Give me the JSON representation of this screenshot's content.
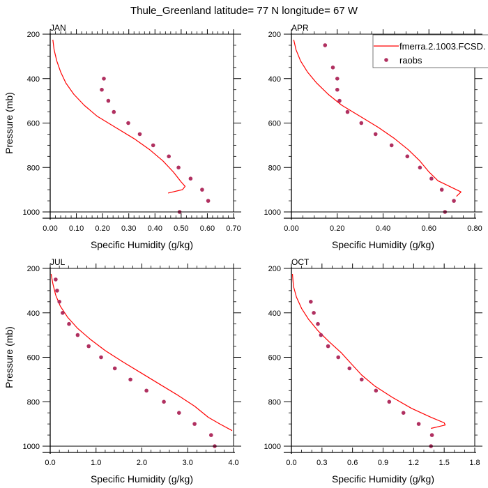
{
  "figure": {
    "title": "Thule_Greenland  latitude= 77 N longitude= 67 W",
    "legend": {
      "entries": [
        {
          "label": "fmerra.2.1003.FCSD.",
          "kind": "line",
          "color": "#ff0000"
        },
        {
          "label": "raobs",
          "kind": "marker",
          "color": "#b03060"
        }
      ]
    },
    "colors": {
      "model_line": "#ff0000",
      "obs_marker": "#b03060",
      "axis": "#000000"
    }
  },
  "chart_data": [
    {
      "type": "line",
      "panel": "JAN",
      "title": "JAN",
      "xlabel": "Specific Humidity (g/kg)",
      "ylabel": "Pressure (mb)",
      "xlim": [
        0,
        0.7
      ],
      "xticks": [
        0,
        0.1,
        0.2,
        0.3,
        0.4,
        0.5,
        0.6,
        0.7
      ],
      "xtick_labels": [
        "0.00",
        "0.10",
        "0.20",
        "0.30",
        "0.40",
        "0.50",
        "0.60",
        "0.70"
      ],
      "ylim": [
        200,
        1000
      ],
      "yinverted": true,
      "yticks": [
        200,
        400,
        600,
        800,
        1000
      ],
      "ytick_labels": [
        "200",
        "400",
        "600",
        "800",
        "1000"
      ],
      "grid": false,
      "series": [
        {
          "name": "fmerra.2.1003.FCSD.",
          "kind": "line",
          "x": [
            0.01,
            0.015,
            0.025,
            0.04,
            0.06,
            0.09,
            0.13,
            0.18,
            0.25,
            0.32,
            0.38,
            0.43,
            0.47,
            0.5,
            0.515,
            0.505,
            0.45
          ],
          "y": [
            225,
            270,
            320,
            370,
            420,
            470,
            520,
            570,
            620,
            670,
            720,
            770,
            820,
            865,
            885,
            900,
            915
          ]
        },
        {
          "name": "raobs",
          "kind": "scatter",
          "x": [
            0.205,
            0.197,
            0.222,
            0.243,
            0.298,
            0.342,
            0.393,
            0.453,
            0.49,
            0.536,
            0.58,
            0.603,
            0.494
          ],
          "y": [
            400,
            450,
            500,
            550,
            600,
            650,
            700,
            750,
            800,
            850,
            900,
            950,
            1000
          ]
        }
      ]
    },
    {
      "type": "line",
      "panel": "APR",
      "title": "APR",
      "xlabel": "Specific Humidity (g/kg)",
      "ylabel": "",
      "xlim": [
        0,
        0.8
      ],
      "xticks": [
        0,
        0.2,
        0.4,
        0.6,
        0.8
      ],
      "xtick_labels": [
        "0.00",
        "0.20",
        "0.40",
        "0.60",
        "0.80"
      ],
      "ylim": [
        200,
        1000
      ],
      "yinverted": true,
      "yticks": [
        200,
        400,
        600,
        800,
        1000
      ],
      "ytick_labels": [
        "200",
        "400",
        "600",
        "800",
        "1000"
      ],
      "grid": false,
      "legend_position": "top-right",
      "series": [
        {
          "name": "fmerra.2.1003.FCSD.",
          "kind": "line",
          "x": [
            0.01,
            0.02,
            0.04,
            0.07,
            0.11,
            0.16,
            0.22,
            0.3,
            0.38,
            0.45,
            0.51,
            0.56,
            0.6,
            0.64,
            0.7,
            0.74,
            0.72
          ],
          "y": [
            225,
            270,
            320,
            370,
            420,
            470,
            520,
            570,
            620,
            670,
            720,
            770,
            820,
            860,
            890,
            910,
            930
          ]
        },
        {
          "name": "raobs",
          "kind": "scatter",
          "x": [
            0.147,
            0.181,
            0.2,
            0.2,
            0.21,
            0.245,
            0.305,
            0.367,
            0.437,
            0.506,
            0.561,
            0.611,
            0.656,
            0.709,
            0.67
          ],
          "y": [
            250,
            350,
            400,
            450,
            500,
            550,
            600,
            650,
            700,
            750,
            800,
            850,
            900,
            950,
            1000
          ]
        }
      ]
    },
    {
      "type": "line",
      "panel": "JUL",
      "title": "JUL",
      "xlabel": "Specific Humidity (g/kg)",
      "ylabel": "Pressure (mb)",
      "xlim": [
        0,
        4.0
      ],
      "xticks": [
        0,
        1,
        2,
        3,
        4
      ],
      "xtick_labels": [
        "0.0",
        "1.0",
        "2.0",
        "3.0",
        "4.0"
      ],
      "ylim": [
        200,
        1000
      ],
      "yinverted": true,
      "yticks": [
        200,
        400,
        600,
        800,
        1000
      ],
      "ytick_labels": [
        "200",
        "400",
        "600",
        "800",
        "1000"
      ],
      "grid": false,
      "series": [
        {
          "name": "fmerra.2.1003.FCSD.",
          "kind": "line",
          "x": [
            0.02,
            0.06,
            0.12,
            0.22,
            0.38,
            0.6,
            0.88,
            1.2,
            1.58,
            1.98,
            2.38,
            2.78,
            3.15,
            3.45,
            3.7,
            3.97
          ],
          "y": [
            225,
            270,
            320,
            370,
            420,
            470,
            520,
            570,
            620,
            670,
            720,
            770,
            820,
            870,
            900,
            930
          ]
        },
        {
          "name": "raobs",
          "kind": "scatter",
          "x": [
            0.12,
            0.15,
            0.2,
            0.27,
            0.41,
            0.6,
            0.84,
            1.11,
            1.41,
            1.75,
            2.1,
            2.48,
            2.81,
            3.15,
            3.51,
            3.59
          ],
          "y": [
            250,
            300,
            350,
            400,
            450,
            500,
            550,
            600,
            650,
            700,
            750,
            800,
            850,
            900,
            950,
            1000
          ]
        }
      ]
    },
    {
      "type": "line",
      "panel": "OCT",
      "title": "OCT",
      "xlabel": "Specific Humidity (g/kg)",
      "ylabel": "",
      "xlim": [
        0,
        1.8
      ],
      "xticks": [
        0,
        0.3,
        0.6,
        0.9,
        1.2,
        1.5,
        1.8
      ],
      "xtick_labels": [
        "0.0",
        "0.3",
        "0.6",
        "0.9",
        "1.2",
        "1.5",
        "1.8"
      ],
      "ylim": [
        200,
        1000
      ],
      "yinverted": true,
      "yticks": [
        200,
        400,
        600,
        800,
        1000
      ],
      "ytick_labels": [
        "200",
        "400",
        "600",
        "800",
        "1000"
      ],
      "grid": false,
      "series": [
        {
          "name": "fmerra.2.1003.FCSD.",
          "kind": "line",
          "x": [
            0.01,
            0.02,
            0.05,
            0.1,
            0.17,
            0.26,
            0.37,
            0.49,
            0.59,
            0.69,
            0.82,
            0.99,
            1.18,
            1.37,
            1.5,
            1.51,
            1.37
          ],
          "y": [
            225,
            280,
            330,
            380,
            430,
            480,
            530,
            580,
            630,
            680,
            730,
            780,
            830,
            870,
            895,
            905,
            920
          ]
        },
        {
          "name": "raobs",
          "kind": "scatter",
          "x": [
            0.19,
            0.22,
            0.26,
            0.29,
            0.36,
            0.46,
            0.57,
            0.69,
            0.83,
            0.96,
            1.1,
            1.25,
            1.38,
            1.37
          ],
          "y": [
            350,
            400,
            450,
            500,
            550,
            600,
            650,
            700,
            750,
            800,
            850,
            900,
            950,
            1000
          ]
        }
      ]
    }
  ]
}
